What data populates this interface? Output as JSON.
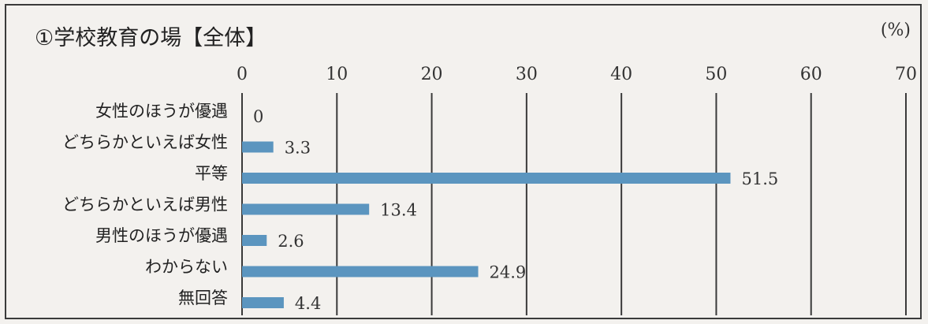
{
  "chart_data": {
    "type": "bar",
    "orientation": "horizontal",
    "title": "①学校教育の場【全体】",
    "unit_label": "(%)",
    "categories": [
      "女性のほうが優遇",
      "どちらかといえば女性",
      "平等",
      "どちらかといえば男性",
      "男性のほうが優遇",
      "わからない",
      "無回答"
    ],
    "values": [
      0,
      3.3,
      51.5,
      13.4,
      2.6,
      24.9,
      4.4
    ],
    "data_labels": [
      "0",
      "3.3",
      "51.5",
      "13.4",
      "2.6",
      "24.9",
      "4.4"
    ],
    "xlim": [
      0,
      70
    ],
    "xticks": [
      0,
      10,
      20,
      30,
      40,
      50,
      60,
      70
    ],
    "xtick_labels": [
      "0",
      "10",
      "20",
      "30",
      "40",
      "50",
      "60",
      "70"
    ],
    "grid": "vertical",
    "bar_color": "#5b95bf"
  }
}
